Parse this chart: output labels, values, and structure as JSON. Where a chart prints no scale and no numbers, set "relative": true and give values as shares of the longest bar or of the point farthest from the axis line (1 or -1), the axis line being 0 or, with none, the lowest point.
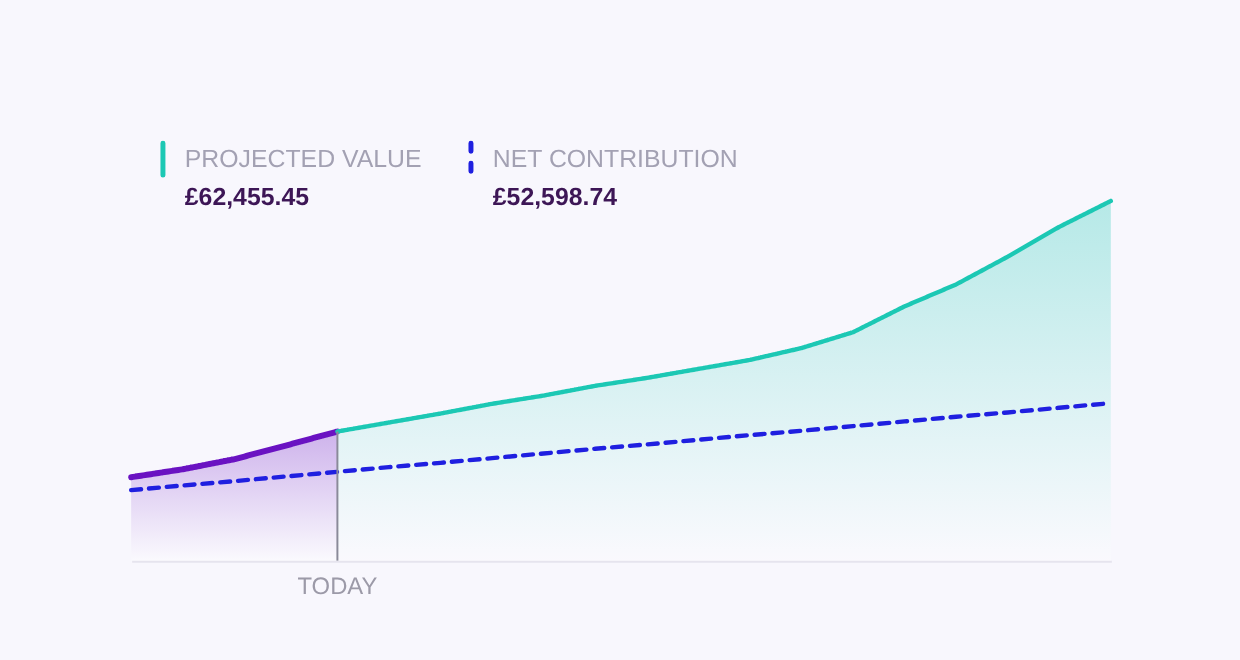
{
  "chart_data": {
    "type": "area",
    "relative": true,
    "legend": "top left",
    "categories": [
      null,
      null,
      null,
      null,
      null,
      null,
      null,
      null,
      null,
      null,
      null,
      null,
      null,
      null,
      null,
      null,
      null,
      null,
      null,
      null
    ],
    "series": [
      {
        "color": "#6a12c2",
        "values": [
          0.232,
          0.254,
          0.282,
          0.32,
          0.359,
          null,
          null,
          null,
          null,
          null,
          null,
          null,
          null,
          null,
          null,
          null,
          null,
          null,
          null,
          null
        ]
      },
      {
        "name": "PROJECTED VALUE",
        "color": "#1cc8b4",
        "values": [
          null,
          null,
          null,
          null,
          0.359,
          0.384,
          0.409,
          0.436,
          0.459,
          0.486,
          0.508,
          0.533,
          0.558,
          0.591,
          0.635,
          0.707,
          0.768,
          0.845,
          0.928,
          1.0
        ]
      },
      {
        "name": "NET CONTRIBUTION",
        "type": "line",
        "line_style": "dashed",
        "color": "#1f1fe0",
        "values": [
          0.196,
          0.209,
          0.221,
          0.234,
          0.247,
          0.26,
          0.272,
          0.285,
          0.298,
          0.311,
          0.323,
          0.336,
          0.349,
          0.361,
          0.374,
          0.387,
          0.4,
          0.412,
          0.425,
          0.438
        ]
      }
    ],
    "annotations": [
      "£62,455.45",
      "£52,598.74",
      "TODAY"
    ]
  }
}
